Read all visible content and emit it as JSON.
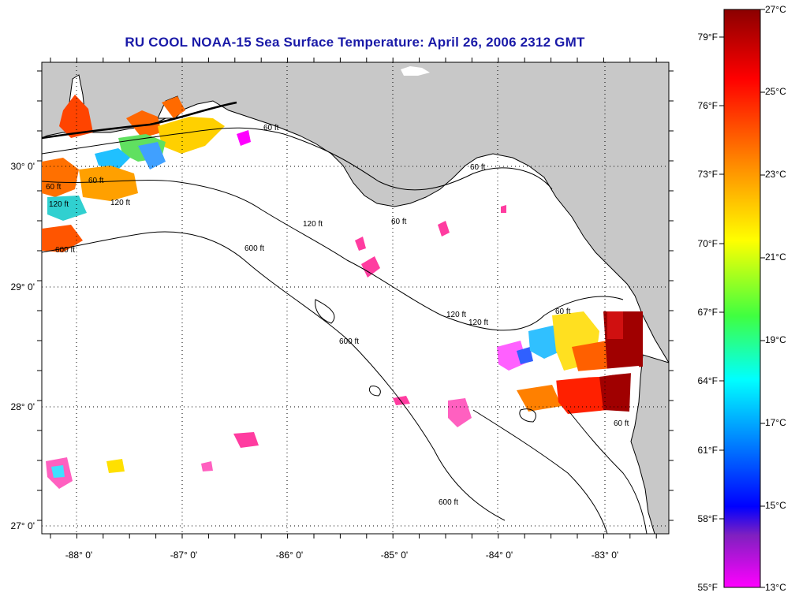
{
  "map": {
    "title": "RU COOL  NOAA-15  Sea Surface Temperature:  April 26, 2006 2312 GMT",
    "longitude_labels": [
      "-88° 0'",
      "-87° 0'",
      "-86° 0'",
      "-85° 0'",
      "-84° 0'",
      "-83° 0'"
    ],
    "latitude_labels": [
      "30° 0'",
      "29° 0'",
      "28° 0'",
      "27° 0'"
    ],
    "contour_labels": [
      "60 ft",
      "60 ft",
      "60 ft",
      "120 ft",
      "600 ft",
      "120 ft",
      "600 ft",
      "120 ft",
      "600 ft",
      "120 ft",
      "600 ft",
      "60 ft",
      "60 ft",
      "60 ft",
      "120 ft",
      "60 ft"
    ],
    "colors": {
      "land": "#c8c8c8",
      "ocean": "#ffffff",
      "title": "#1a1aa8"
    }
  },
  "colorbar": {
    "fahrenheit_labels": [
      "79°F",
      "76°F",
      "73°F",
      "70°F",
      "67°F",
      "64°F",
      "61°F",
      "58°F",
      "55°F"
    ],
    "celsius_labels": [
      "27°C",
      "25°C",
      "23°C",
      "21°C",
      "19°C",
      "17°C",
      "15°C",
      "13°C"
    ],
    "min_c": 13,
    "max_c": 27,
    "gradient": [
      "#8b0000",
      "#ff0000",
      "#ff8c00",
      "#ffff00",
      "#40ff40",
      "#00ffff",
      "#0080ff",
      "#0000ff",
      "#8020c0",
      "#ff00ff"
    ]
  }
}
